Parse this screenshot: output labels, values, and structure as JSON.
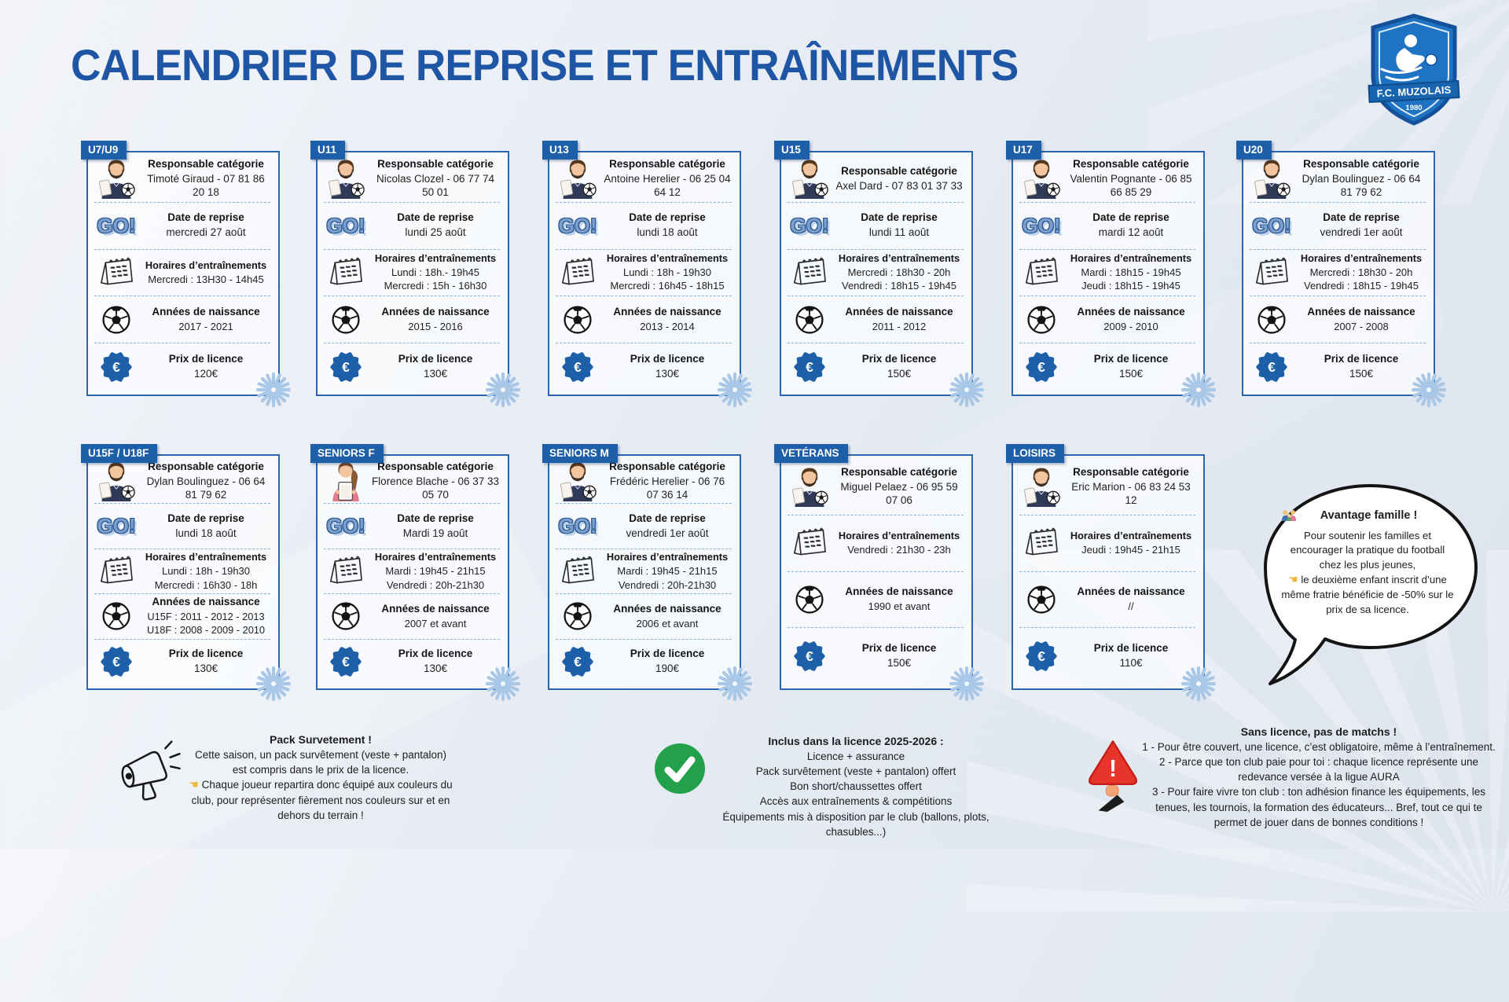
{
  "page": {
    "title": "CALENDRIER DE REPRISE ET ENTRAÎNEMENTS"
  },
  "logo": {
    "club": "F.C. MUZOLAIS",
    "year": "1980"
  },
  "colors": {
    "title_blue": "#1e55a4",
    "tab_blue": "#1d5fa8",
    "card_border": "#2b66ad",
    "separator": "#86b4dd",
    "burst": "#a9c7e6",
    "check_green": "#23a14a",
    "warning_red": "#e8352b",
    "hand_yellow": "#edb83d"
  },
  "labels": {
    "responsable": "Responsable catégorie",
    "reprise": "Date de reprise",
    "horaires": "Horaires d’entraînements",
    "naissance": "Années de naissance",
    "prix": "Prix de licence"
  },
  "icons": {
    "go": "GO!",
    "euro": "€",
    "warning": "!",
    "hand_left": "☚"
  },
  "cards": [
    {
      "tag": "U7/U9",
      "avatar": "male",
      "responsable": "Timoté Giraud - 07 81 86 20 18",
      "reprise": "mercredi 27 août",
      "horaires": [
        "Mercredi : 13H30 - 14h45"
      ],
      "naissance": [
        "2017 - 2021"
      ],
      "prix": "120€"
    },
    {
      "tag": "U11",
      "avatar": "male",
      "responsable": "Nicolas Clozel - 06 77 74 50 01",
      "reprise": "lundi 25 août",
      "horaires": [
        "Lundi : 18h.- 19h45",
        "Mercredi : 15h - 16h30"
      ],
      "naissance": [
        "2015 - 2016"
      ],
      "prix": "130€"
    },
    {
      "tag": "U13",
      "avatar": "male",
      "responsable": "Antoine Herelier - 06 25 04 64 12",
      "reprise": "lundi 18 août",
      "horaires": [
        "Lundi : 18h - 19h30",
        "Mercredi : 16h45 - 18h15"
      ],
      "naissance": [
        "2013 - 2014"
      ],
      "prix": "130€"
    },
    {
      "tag": "U15",
      "avatar": "male",
      "responsable": "Axel Dard - 07 83 01 37 33",
      "reprise": "lundi 11 août",
      "horaires": [
        "Mercredi : 18h30 - 20h",
        "Vendredi : 18h15 - 19h45"
      ],
      "naissance": [
        "2011 - 2012"
      ],
      "prix": "150€"
    },
    {
      "tag": "U17",
      "avatar": "male",
      "responsable": "Valentin Pognante - 06 85 66 85 29",
      "reprise": "mardi 12 août",
      "horaires": [
        "Mardi : 18h15 - 19h45",
        "Jeudi : 18h15 - 19h45"
      ],
      "naissance": [
        "2009 - 2010"
      ],
      "prix": "150€"
    },
    {
      "tag": "U20",
      "avatar": "male",
      "responsable": "Dylan Boulinguez - 06 64 81 79 62",
      "reprise": "vendredi 1er août",
      "horaires": [
        "Mercredi : 18h30 - 20h",
        "Vendredi : 18h15 - 19h45"
      ],
      "naissance": [
        "2007 - 2008"
      ],
      "prix": "150€"
    },
    {
      "tag": "U15F / U18F",
      "avatar": "male",
      "responsable": "Dylan Boulinguez - 06 64 81 79 62",
      "reprise": "lundi 18 août",
      "horaires": [
        "Lundi : 18h - 19h30",
        "Mercredi : 16h30 - 18h"
      ],
      "naissance": [
        "U15F : 2011 - 2012 - 2013",
        "U18F : 2008 - 2009 - 2010"
      ],
      "prix": "130€"
    },
    {
      "tag": "SENIORS F",
      "avatar": "female",
      "responsable": "Florence Blache - 06 37 33 05 70",
      "reprise": "Mardi 19 août",
      "horaires": [
        "Mardi : 19h45 - 21h15",
        "Vendredi : 20h-21h30"
      ],
      "naissance": [
        "2007 et avant"
      ],
      "prix": "130€"
    },
    {
      "tag": "SENIORS M",
      "avatar": "male",
      "responsable": "Frédéric Herelier - 06 76 07 36 14",
      "reprise": "vendredi 1er août",
      "horaires": [
        "Mardi : 19h45 - 21h15",
        "Vendredi : 20h-21h30"
      ],
      "naissance": [
        "2006 et avant"
      ],
      "prix": "190€"
    },
    {
      "tag": "VETÉRANS",
      "avatar": "male",
      "responsable": "Miguel Pelaez - 06 95 59 07 06",
      "reprise": null,
      "horaires": [
        "Vendredi : 21h30 - 23h"
      ],
      "naissance": [
        "1990 et avant"
      ],
      "prix": "150€"
    },
    {
      "tag": "LOISIRS",
      "avatar": "male",
      "responsable": "Eric Marion - 06 83 24 53 12",
      "reprise": null,
      "horaires": [
        "Jeudi : 19h45 - 21h15"
      ],
      "naissance": [
        "//"
      ],
      "prix": "110€"
    }
  ],
  "notes": {
    "pack": {
      "title": "Pack Survetement !",
      "text_before": "Cette saison, un pack survêtement (veste + pantalon) est compris dans le prix de la licence.",
      "text_after": "Chaque joueur repartira donc équipé aux couleurs du club, pour représenter fièrement nos couleurs sur et en dehors du terrain !"
    },
    "included": {
      "title": "Inclus dans la licence 2025-2026 :",
      "items": [
        "Licence + assurance",
        "Pack survêtement (veste + pantalon) offert",
        "Bon short/chaussettes offert",
        "Accès aux entraînements & compétitions",
        "Équipements mis à disposition par le club (ballons, plots, chasubles...)"
      ]
    },
    "license_warning": {
      "title": "Sans licence, pas de matchs !",
      "items": [
        "1 - Pour être couvert, une licence, c’est obligatoire, même à l’entraînement.",
        "2 - Parce que ton club paie pour toi : chaque licence représente une redevance versée à la ligue AURA",
        "3 - Pour faire vivre ton club : ton adhésion finance les équipements, les tenues, les tournois, la formation des éducateurs... Bref, tout ce qui te permet de jouer dans de bonnes conditions !"
      ]
    },
    "family": {
      "title": "Avantage famille !",
      "text_before": "Pour soutenir les familles et encourager la pratique du football chez les plus jeunes,",
      "text_after": "le deuxième enfant inscrit d’une même fratrie bénéficie de -50% sur le prix de sa licence."
    }
  }
}
